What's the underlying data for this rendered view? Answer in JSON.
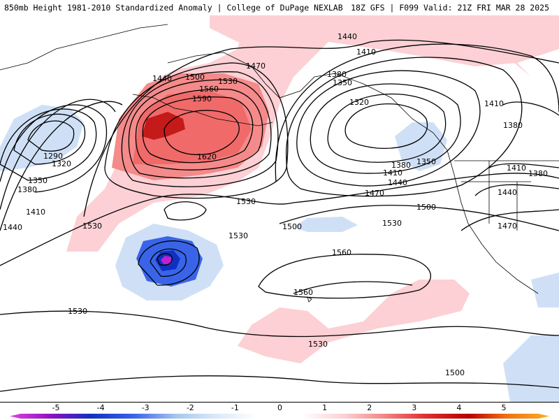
{
  "header": {
    "title": "850mb Height 1981-2010 Standardized Anomaly | College of DuPage NEXLAB",
    "model_info": "18Z GFS | F099 Valid: 21Z FRI MAR 28 2025"
  },
  "colorbar": {
    "labels": [
      "-5",
      "-4",
      "-3",
      "-2",
      "-1",
      "0",
      "1",
      "2",
      "3",
      "4",
      "5"
    ],
    "colors": [
      "#e040e0",
      "#8a10c0",
      "#1030c0",
      "#3a64e8",
      "#a6c8f0",
      "#d8e8f8",
      "#ffffff",
      "#ffffff",
      "#fcd0d4",
      "#f48a8a",
      "#e03030",
      "#b80000",
      "#f07010",
      "#f8b020"
    ]
  },
  "contour_labels": {
    "h1290": "1290",
    "h1320": "1320",
    "h1350": "1350",
    "h1380": "1380",
    "h1410": "1410",
    "h1440": "1440",
    "h1470": "1470",
    "h1500": "1500",
    "h1530": "1530",
    "h1560": "1560",
    "h1590": "1590",
    "h1620": "1620"
  }
}
